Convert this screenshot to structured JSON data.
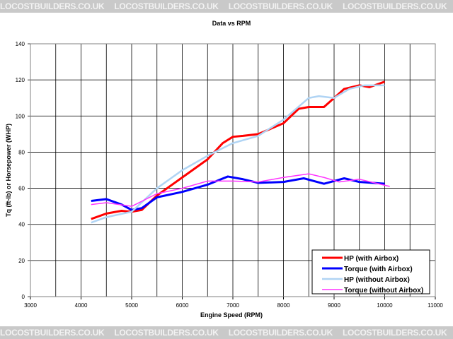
{
  "watermark": "LOCOSTBUILDERS.CO.UK",
  "chart_data": {
    "type": "line",
    "title": "Data vs RPM",
    "xlabel": "Engine Speed (RPM)",
    "ylabel": "Tq (ft-lb) or Horsepower (WHP)",
    "xlim": [
      3000,
      11000
    ],
    "ylim": [
      0,
      140
    ],
    "xticks": [
      3000,
      4000,
      5000,
      6000,
      7000,
      8000,
      9000,
      10000,
      11000
    ],
    "yticks": [
      0,
      20,
      40,
      60,
      80,
      100,
      120,
      140
    ],
    "grid": true,
    "legend": "bottom-right",
    "series": [
      {
        "name": "HP (with Airbox)",
        "color": "#ff0000",
        "width": 3,
        "x": [
          4200,
          4500,
          4800,
          5000,
          5200,
          5500,
          6000,
          6500,
          6800,
          7000,
          7200,
          7500,
          8000,
          8300,
          8500,
          8800,
          9000,
          9200,
          9500,
          9700,
          10000
        ],
        "y": [
          43,
          46,
          47.5,
          47,
          48,
          56,
          66,
          76,
          85,
          88.5,
          89,
          90,
          96,
          104,
          105,
          105,
          110,
          115,
          117,
          116,
          119
        ]
      },
      {
        "name": "Torque (with Airbox)",
        "color": "#0000ff",
        "width": 3,
        "x": [
          4200,
          4500,
          4800,
          5000,
          5200,
          5500,
          6000,
          6500,
          6900,
          7200,
          7500,
          8000,
          8400,
          8800,
          9200,
          9500,
          10000
        ],
        "y": [
          53,
          54,
          51,
          48,
          49,
          55,
          58,
          62,
          66.5,
          65,
          63,
          63.5,
          65.5,
          62.5,
          65.5,
          63.5,
          62.5
        ]
      },
      {
        "name": "HP (without Airbox)",
        "color": "#b0d4f4",
        "width": 2.5,
        "x": [
          4200,
          4500,
          5000,
          5500,
          6000,
          6500,
          7000,
          7500,
          8000,
          8500,
          8700,
          9000,
          9300,
          9600,
          10000
        ],
        "y": [
          41,
          44,
          47,
          60,
          70,
          78,
          85,
          89,
          98,
          110,
          111,
          110,
          115,
          117,
          117
        ]
      },
      {
        "name": "Torque (without Airbox)",
        "color": "#ff33ff",
        "width": 1.5,
        "x": [
          4200,
          4500,
          5000,
          5500,
          6000,
          6500,
          7000,
          7500,
          8000,
          8500,
          8800,
          9100,
          9500,
          10100
        ],
        "y": [
          51,
          52,
          50,
          57,
          60,
          64,
          64,
          63.5,
          66,
          68,
          66,
          63.5,
          65,
          61
        ]
      }
    ]
  }
}
